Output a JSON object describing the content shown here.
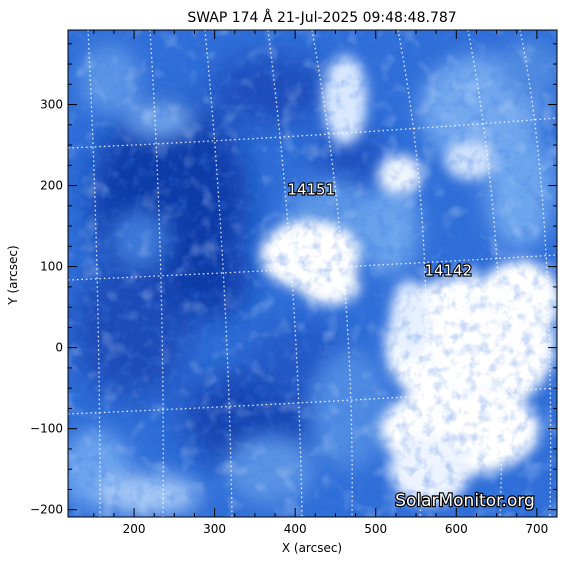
{
  "figure": {
    "title": "SWAP 174 Å 21-Jul-2025 09:48:48.787",
    "xlabel": "X (arcsec)",
    "ylabel": "Y (arcsec)",
    "x_ticks": [
      "200",
      "300",
      "400",
      "500",
      "600",
      "700"
    ],
    "y_ticks": [
      "300",
      "200",
      "100",
      "0",
      "−100",
      "−200"
    ],
    "x_tick_values": [
      200,
      300,
      400,
      500,
      600,
      700
    ],
    "y_tick_values": [
      300,
      200,
      100,
      0,
      -100,
      -200
    ],
    "xlim": [
      118,
      725
    ],
    "ylim": [
      -209,
      392
    ],
    "active_regions": [
      {
        "label": "14151",
        "x": 420,
        "y": 195
      },
      {
        "label": "14142",
        "x": 590,
        "y": 95
      }
    ],
    "watermark": "SolarMonitor.org",
    "colors": {
      "background": "#ffffff",
      "image_deep": "#0a2f9c",
      "image_mid": "#3d7fe0",
      "image_light": "#a9cbf7",
      "image_bright": "#ffffff",
      "grid": "#ffffff",
      "axis": "#000000"
    }
  }
}
